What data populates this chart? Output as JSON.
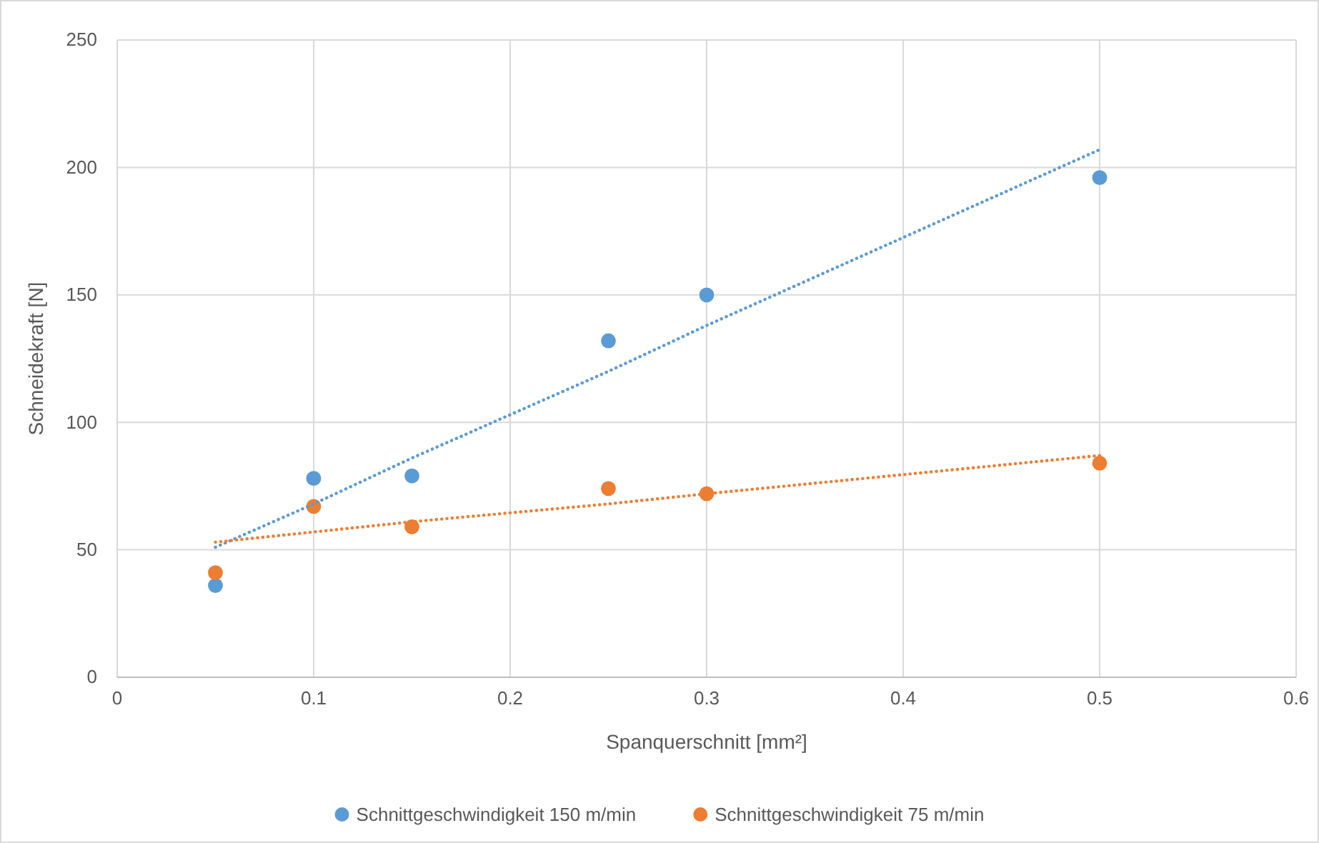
{
  "chart_data": {
    "type": "scatter",
    "xlabel": "Spanquerschnitt [mm²]",
    "ylabel": "Schneidekraft [N]",
    "x": [
      0.05,
      0.1,
      0.15,
      0.25,
      0.3,
      0.5
    ],
    "series": [
      {
        "name": "Schnittgeschwindigkeit 150 m/min",
        "color": "#5b9bd5",
        "values": [
          36,
          78,
          79,
          132,
          150,
          196
        ]
      },
      {
        "name": "Schnittgeschwindigkeit 75 m/min",
        "color": "#ed7d31",
        "values": [
          41,
          67,
          59,
          74,
          72,
          84
        ]
      },
      {
        "type": "line",
        "color": "#5b9bd5",
        "values": [
          51,
          68,
          86,
          120,
          138,
          207
        ],
        "line_style": "dotted",
        "marker": "none"
      },
      {
        "type": "line",
        "color": "#ed7d31",
        "values": [
          53,
          57,
          61,
          68,
          72,
          87
        ],
        "line_style": "dotted",
        "marker": "none"
      }
    ],
    "xlim": [
      0,
      0.6
    ],
    "xticks": [
      0,
      0.1,
      0.2,
      0.3,
      0.4,
      0.5,
      0.6
    ],
    "ylim": [
      0,
      250
    ],
    "yticks": [
      0,
      50,
      100,
      150,
      200,
      250
    ],
    "grid": true,
    "legend": "bottom",
    "marker": "circle"
  }
}
